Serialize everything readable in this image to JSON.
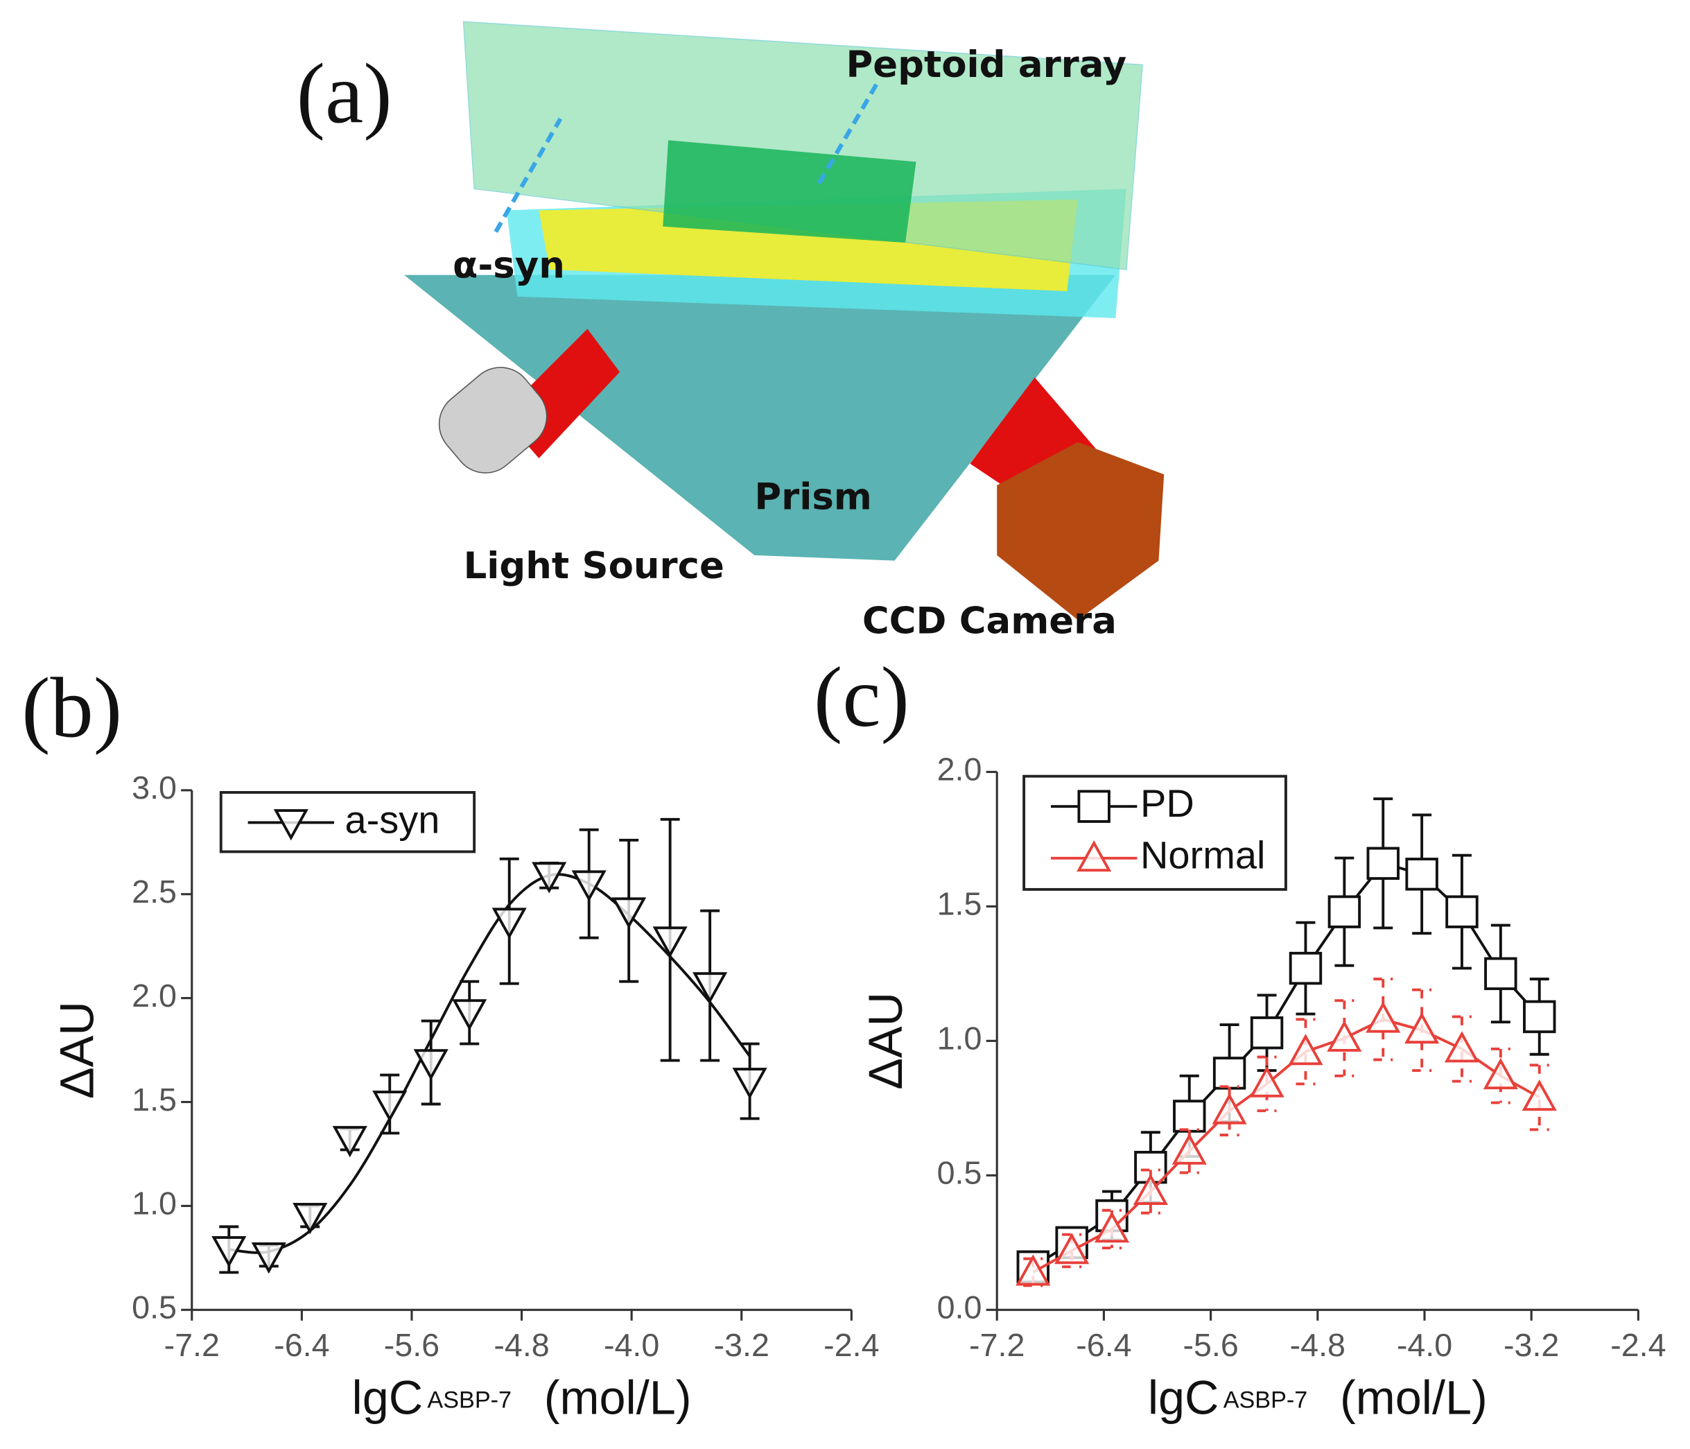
{
  "diagram": {
    "panel_label": "(a)",
    "labels": [
      "Peptoid array",
      "α-syn",
      "Prism",
      "Light Source",
      "CCD Camera"
    ]
  },
  "chart_data": [
    {
      "type": "line",
      "panel_label": "(b)",
      "ylabel": "ΔAU",
      "xlabel": "lgC",
      "xlabel_sub": "ASBP-7",
      "xlabel_unit": "(mol/L)",
      "x": [
        -6.93,
        -6.64,
        -6.34,
        -6.05,
        -5.76,
        -5.46,
        -5.18,
        -4.89,
        -4.6,
        -4.31,
        -4.02,
        -3.72,
        -3.43,
        -3.14
      ],
      "series": [
        {
          "name": "a-syn",
          "color": "#111111",
          "marker": "triangle-down",
          "values": [
            0.79,
            0.76,
            0.95,
            1.32,
            1.49,
            1.69,
            1.93,
            2.37,
            2.59,
            2.55,
            2.42,
            2.28,
            2.06,
            1.6
          ],
          "errors": [
            0.11,
            0.05,
            0.05,
            0.05,
            0.14,
            0.2,
            0.15,
            0.3,
            0.06,
            0.26,
            0.34,
            0.58,
            0.36,
            0.18
          ]
        }
      ],
      "fit": {
        "values": [
          0.79,
          0.78,
          0.88,
          1.1,
          1.42,
          1.8,
          2.15,
          2.45,
          2.59,
          2.55,
          2.4,
          2.2,
          1.98,
          1.72
        ]
      },
      "xlim": [
        -7.2,
        -2.4
      ],
      "xticks": [
        -7.2,
        -6.4,
        -5.6,
        -4.8,
        {
          "value": -4,
          "label": "-4.0"
        },
        -3.2,
        -2.4
      ],
      "ylim": [
        0.5,
        3
      ],
      "yticks": [
        0.5,
        {
          "value": 1,
          "label": "1.0"
        },
        1.5,
        {
          "value": 2,
          "label": "2.0"
        },
        2.5,
        {
          "value": 3,
          "label": "3.0"
        }
      ],
      "legend": "upper left"
    },
    {
      "type": "line",
      "panel_label": "(c)",
      "ylabel": "ΔAU",
      "xlabel": "lgC",
      "xlabel_sub": "ASBP-7",
      "xlabel_unit": "(mol/L)",
      "x": [
        -6.93,
        -6.64,
        -6.34,
        -6.05,
        -5.76,
        -5.46,
        -5.18,
        -4.89,
        -4.6,
        -4.31,
        -4.02,
        -3.72,
        -3.43,
        -3.14
      ],
      "series": [
        {
          "name": "PD",
          "color": "#111111",
          "marker": "square",
          "dashed_errors": false,
          "values": [
            0.16,
            0.25,
            0.35,
            0.53,
            0.72,
            0.88,
            1.03,
            1.27,
            1.48,
            1.66,
            1.62,
            1.48,
            1.25,
            1.09
          ],
          "errors": [
            0.03,
            0.05,
            0.09,
            0.13,
            0.15,
            0.18,
            0.14,
            0.17,
            0.2,
            0.24,
            0.22,
            0.21,
            0.18,
            0.14
          ]
        },
        {
          "name": "Normal",
          "color": "#e8403a",
          "marker": "triangle-up",
          "dashed_errors": true,
          "values": [
            0.14,
            0.22,
            0.3,
            0.44,
            0.59,
            0.74,
            0.84,
            0.96,
            1.01,
            1.08,
            1.04,
            0.97,
            0.87,
            0.79
          ],
          "errors": [
            0.05,
            0.06,
            0.07,
            0.08,
            0.08,
            0.09,
            0.1,
            0.12,
            0.14,
            0.15,
            0.15,
            0.12,
            0.1,
            0.12
          ]
        }
      ],
      "xlim": [
        -7.2,
        -2.4
      ],
      "xticks": [
        -7.2,
        -6.4,
        -5.6,
        -4.8,
        {
          "value": -4,
          "label": "-4.0"
        },
        -3.2,
        -2.4
      ],
      "ylim": [
        0,
        2
      ],
      "yticks": [
        {
          "value": 0,
          "label": "0.0"
        },
        0.5,
        {
          "value": 1,
          "label": "1.0"
        },
        1.5,
        {
          "value": 2,
          "label": "2.0"
        }
      ],
      "legend": "upper left"
    }
  ]
}
